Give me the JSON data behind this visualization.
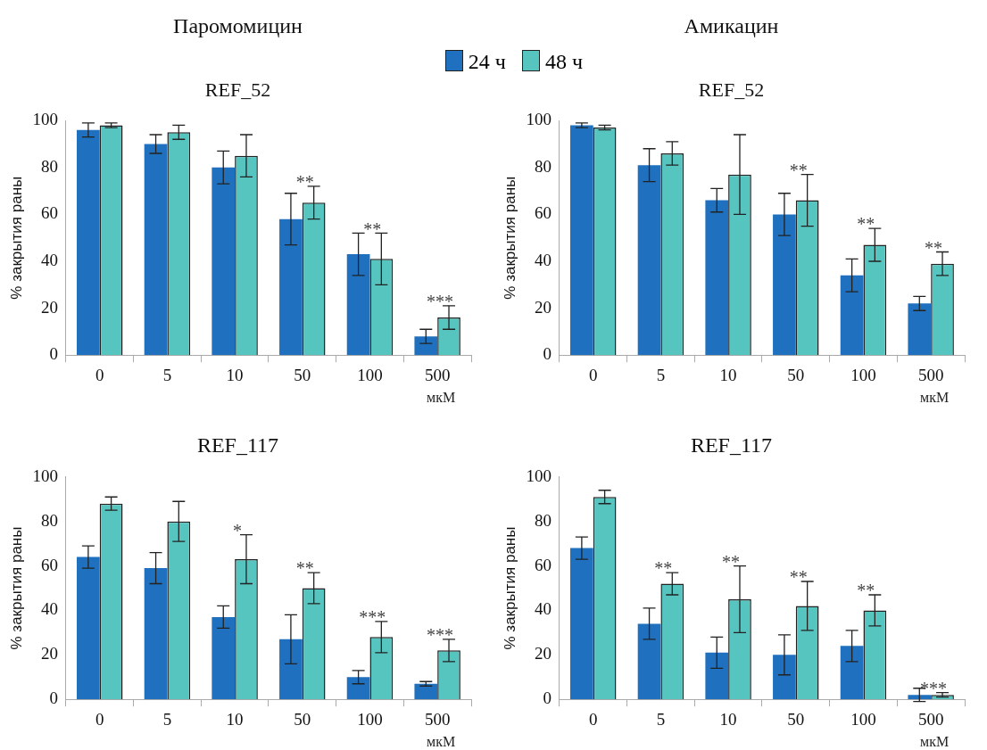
{
  "chart_data": [
    {
      "type": "bar",
      "title": "Паромомицин",
      "subtitle": "REF_52",
      "ylabel": "% закрытия раны",
      "xlabel": "мкМ",
      "categories": [
        "0",
        "5",
        "10",
        "50",
        "100",
        "500"
      ],
      "ylim": [
        0,
        100
      ],
      "yticks": [
        0,
        20,
        40,
        60,
        80,
        100
      ],
      "legend": "top right",
      "series": [
        {
          "name": "24 ч",
          "color": "#1f70be",
          "values": [
            96,
            90,
            80,
            58,
            43,
            8
          ],
          "errors": [
            3,
            4,
            7,
            11,
            9,
            3
          ]
        },
        {
          "name": "48 ч",
          "color": "#56c5c0",
          "values": [
            98,
            95,
            85,
            65,
            41,
            16
          ],
          "errors": [
            1,
            3,
            9,
            7,
            11,
            5
          ],
          "value_labels": [
            null,
            null,
            null,
            "**",
            "**",
            "***"
          ]
        }
      ]
    },
    {
      "type": "bar",
      "title": "Амикацин",
      "subtitle": "REF_52",
      "ylabel": "% закрытия раны",
      "xlabel": "мкМ",
      "categories": [
        "0",
        "5",
        "10",
        "50",
        "100",
        "500"
      ],
      "ylim": [
        0,
        100
      ],
      "yticks": [
        0,
        20,
        40,
        60,
        80,
        100
      ],
      "series": [
        {
          "color": "#1f70be",
          "values": [
            98,
            81,
            66,
            60,
            34,
            22
          ],
          "errors": [
            1,
            7,
            5,
            9,
            7,
            3
          ]
        },
        {
          "color": "#56c5c0",
          "values": [
            97,
            86,
            77,
            66,
            47,
            39
          ],
          "errors": [
            1,
            5,
            17,
            11,
            7,
            5
          ],
          "value_labels": [
            null,
            null,
            null,
            "**",
            "**",
            "**"
          ]
        }
      ]
    },
    {
      "type": "bar",
      "title": "REF_117",
      "ylabel": "% закрытия раны",
      "xlabel": "мкМ",
      "categories": [
        "0",
        "5",
        "10",
        "50",
        "100",
        "500"
      ],
      "ylim": [
        0,
        100
      ],
      "yticks": [
        0,
        20,
        40,
        60,
        80,
        100
      ],
      "series": [
        {
          "color": "#1f70be",
          "values": [
            64,
            59,
            37,
            27,
            10,
            7
          ],
          "errors": [
            5,
            7,
            5,
            11,
            3,
            1
          ]
        },
        {
          "color": "#56c5c0",
          "values": [
            88,
            80,
            63,
            50,
            28,
            22
          ],
          "errors": [
            3,
            9,
            11,
            7,
            7,
            5
          ],
          "value_labels": [
            null,
            null,
            "*",
            "**",
            "***",
            "***"
          ]
        }
      ]
    },
    {
      "type": "bar",
      "title": "REF_117",
      "ylabel": "% закрытия раны",
      "xlabel": "мкМ",
      "categories": [
        "0",
        "5",
        "10",
        "50",
        "100",
        "500"
      ],
      "ylim": [
        0,
        100
      ],
      "yticks": [
        0,
        20,
        40,
        60,
        80,
        100
      ],
      "series": [
        {
          "color": "#1f70be",
          "values": [
            68,
            34,
            21,
            20,
            24,
            2
          ],
          "errors": [
            5,
            7,
            7,
            9,
            7,
            3
          ]
        },
        {
          "color": "#56c5c0",
          "values": [
            91,
            52,
            45,
            42,
            40,
            2
          ],
          "errors": [
            3,
            5,
            15,
            11,
            7,
            1
          ],
          "value_labels": [
            null,
            "**",
            "**",
            "**",
            "**",
            "***"
          ]
        }
      ]
    }
  ]
}
